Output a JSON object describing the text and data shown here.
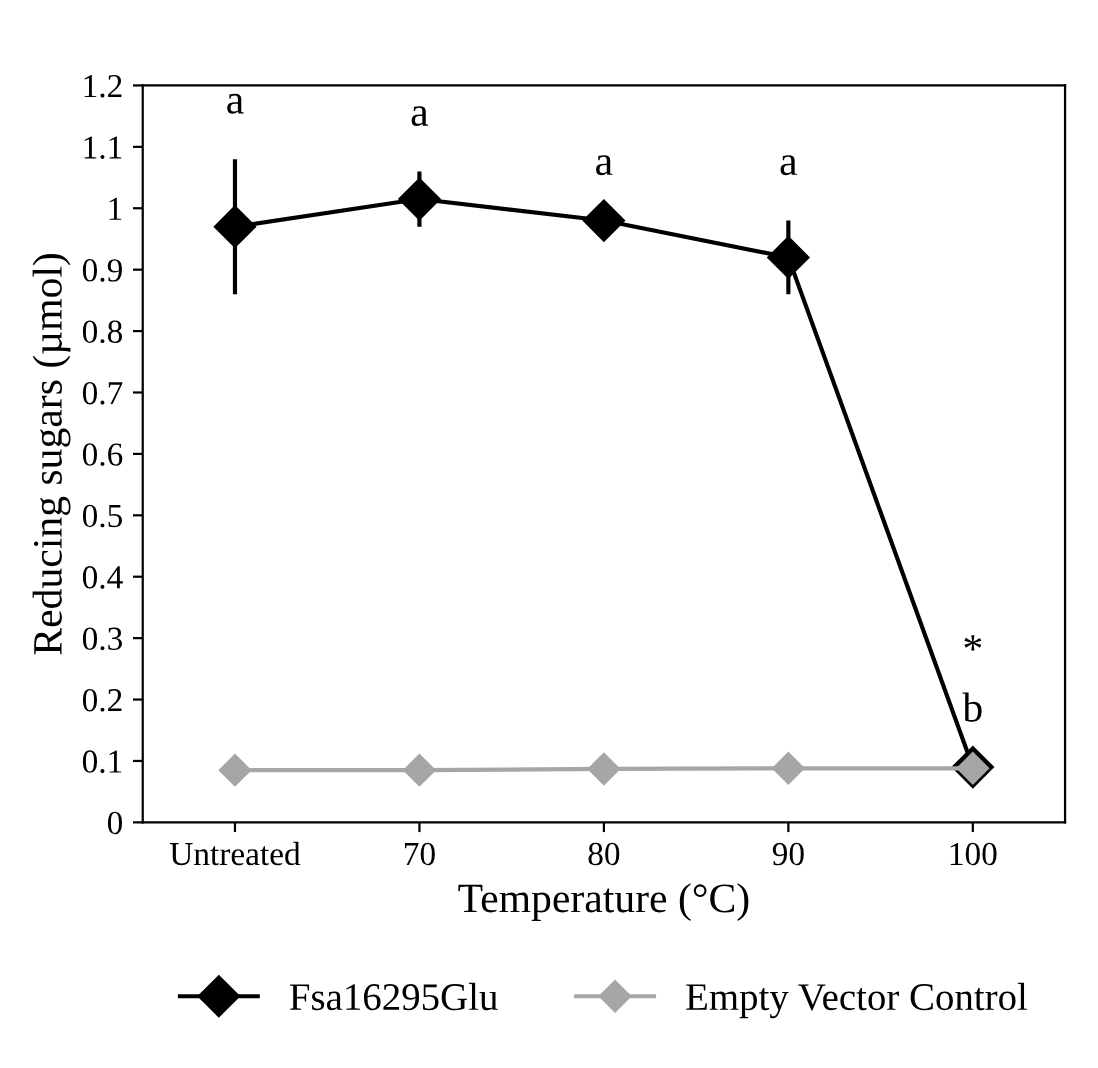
{
  "chart_data": {
    "type": "line",
    "xlabel": "Temperature (°C)",
    "ylabel": "Reducing sugars (µmol)",
    "categories": [
      "Untreated",
      "70",
      "80",
      "90",
      "100"
    ],
    "series": [
      {
        "name": "Fsa16295Glu",
        "color": "#000000",
        "values": [
          0.97,
          1.015,
          0.98,
          0.92,
          0.09
        ],
        "errors": [
          0.11,
          0.045,
          null,
          0.06,
          null
        ]
      },
      {
        "name": "Empty Vector Control",
        "color": "#a6a6a6",
        "values": [
          0.085,
          0.085,
          0.087,
          0.088,
          0.088
        ]
      }
    ],
    "ylim": [
      0,
      1.2
    ],
    "yticks": [
      0,
      0.1,
      0.2,
      0.3,
      0.4,
      0.5,
      0.6,
      0.7,
      0.8,
      0.9,
      1,
      1.1,
      1.2
    ],
    "annotations": [
      "a",
      "a",
      "a",
      "a",
      "*",
      "b"
    ],
    "marker": "diamond",
    "line_style": "solid",
    "grid": false,
    "legend": "bottom"
  }
}
